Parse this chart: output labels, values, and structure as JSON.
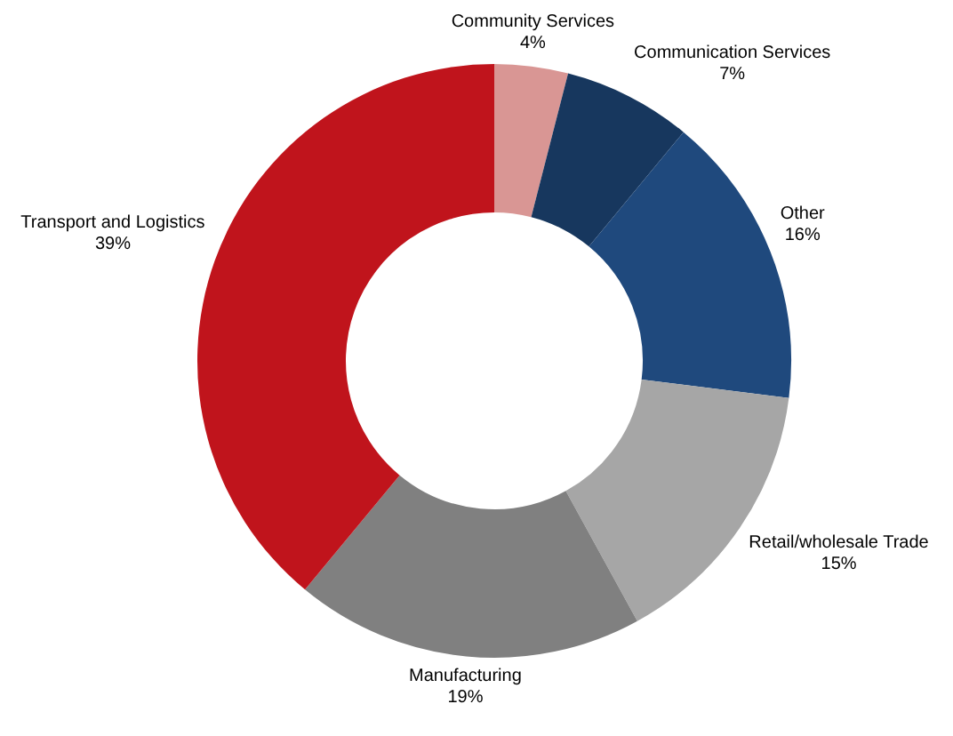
{
  "chart_data": {
    "type": "donut",
    "categories": [
      "Community Services",
      "Communication Services",
      "Other",
      "Retail/wholesale Trade",
      "Manufacturing",
      "Transport and Logistics"
    ],
    "values": [
      4,
      7,
      16,
      15,
      19,
      39
    ],
    "value_labels": [
      "4%",
      "7%",
      "16%",
      "15%",
      "19%",
      "39%"
    ],
    "colors": [
      "#d99694",
      "#17375e",
      "#1f497d",
      "#a6a6a6",
      "#808080",
      "#c0141c"
    ],
    "legend": false
  }
}
